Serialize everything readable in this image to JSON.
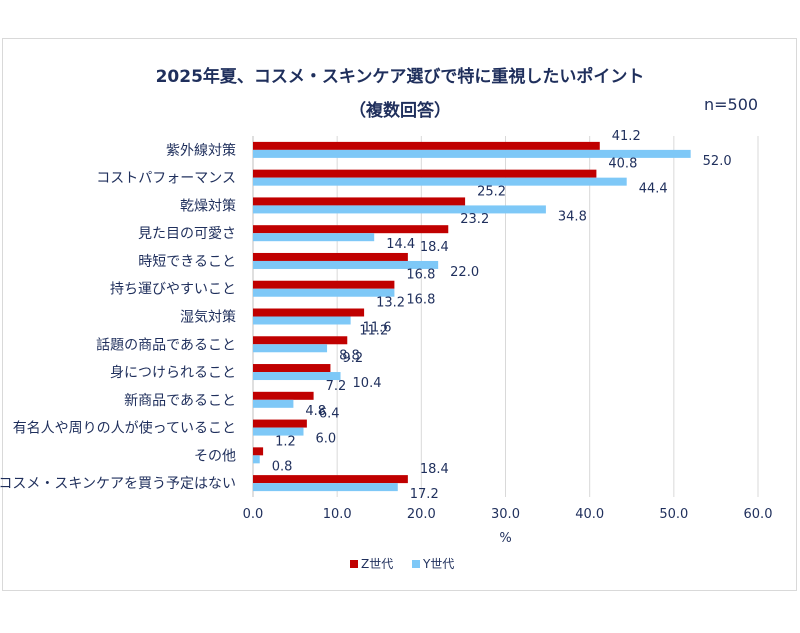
{
  "chart_data": {
    "type": "bar",
    "orientation": "horizontal",
    "title": "2025年夏、コスメ・スキンケア選びで特に重視したいポイント",
    "subtitle": "（複数回答）",
    "sample_note": "n=500",
    "xlabel": "%",
    "xlim": [
      0,
      60
    ],
    "xticks": [
      "0.0",
      "10.0",
      "20.0",
      "30.0",
      "40.0",
      "50.0",
      "60.0"
    ],
    "grid": true,
    "legend_position": "bottom",
    "categories": [
      "紫外線対策",
      "コストパフォーマンス",
      "乾燥対策",
      "見た目の可愛さ",
      "時短できること",
      "持ち運びやすいこと",
      "湿気対策",
      "話題の商品であること",
      "身につけられること",
      "新商品であること",
      "有名人や周りの人が使っていること",
      "その他",
      "コスメ・スキンケアを買う予定はない"
    ],
    "series": [
      {
        "name": "Z世代",
        "color": "#c00000",
        "values": [
          41.2,
          40.8,
          25.2,
          23.2,
          18.4,
          16.8,
          13.2,
          11.2,
          9.2,
          7.2,
          6.4,
          1.2,
          18.4
        ],
        "labels": [
          "41.2",
          "40.8",
          "25.2",
          "23.2",
          "18.4",
          "16.8",
          "13.2",
          "11.2",
          "9.2",
          "7.2",
          "6.4",
          "1.2",
          "18.4"
        ]
      },
      {
        "name": "Y世代",
        "color": "#7ec8f7",
        "values": [
          52.0,
          44.4,
          34.8,
          14.4,
          22.0,
          16.8,
          11.6,
          8.8,
          10.4,
          4.8,
          6.0,
          0.8,
          17.2
        ],
        "labels": [
          "52.0",
          "44.4",
          "34.8",
          "14.4",
          "22.0",
          "16.8",
          "11.6",
          "8.8",
          "10.4",
          "4.8",
          "6.0",
          "0.8",
          "17.2"
        ]
      }
    ]
  }
}
